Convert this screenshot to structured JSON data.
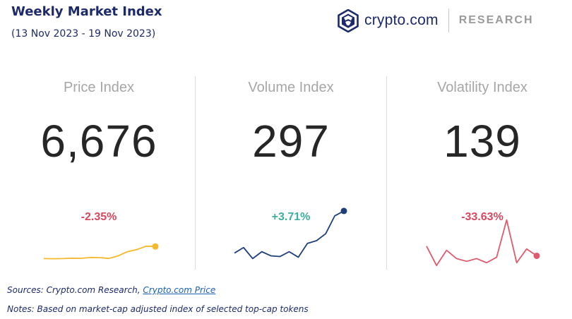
{
  "header": {
    "title": "Weekly Market Index",
    "subtitle": "(13 Nov 2023 - 19 Nov 2023)"
  },
  "brand": {
    "name": "crypto.com",
    "research": "RESEARCH",
    "logo_icon": "crypto-com-lion-shield-icon",
    "color": "#1c2a6b"
  },
  "panels": [
    {
      "label": "Price Index",
      "value": "6,676",
      "change": "-2.35%",
      "direction": "negative",
      "spark_color": "#f5b82e",
      "spark_values": [
        18,
        17.8,
        18,
        18.6,
        18.4,
        19.6,
        19.4,
        18.2,
        22,
        28,
        31,
        36,
        35.6
      ]
    },
    {
      "label": "Volume Index",
      "value": "297",
      "change": "+3.71%",
      "direction": "positive",
      "spark_color": "#1f3f79",
      "spark_values": [
        26,
        34,
        18,
        28,
        22,
        21,
        28,
        20,
        40,
        44,
        54,
        80,
        87
      ]
    },
    {
      "label": "Volatility Index",
      "value": "139",
      "change": "-33.63%",
      "direction": "negative",
      "spark_color": "#e05a6e",
      "spark_values": [
        36,
        8,
        30,
        18,
        14,
        18,
        12,
        20,
        74,
        12,
        32,
        22
      ]
    }
  ],
  "colors": {
    "negative": "#d9475f",
    "positive": "#3fae9b"
  },
  "footer": {
    "sources_prefix": "Sources: Crypto.com Research, ",
    "sources_link": "Crypto.com Price",
    "notes": "Notes: Based on market-cap adjusted index of selected top-cap tokens"
  }
}
